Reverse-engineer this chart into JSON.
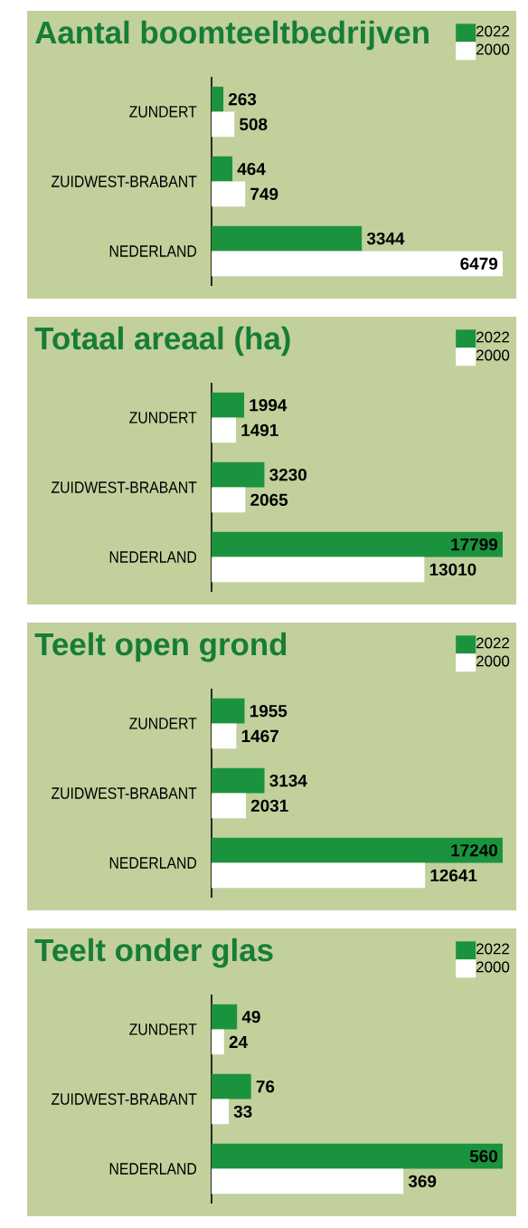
{
  "chart_data": [
    {
      "type": "bar",
      "orientation": "horizontal",
      "title": "Aantal boomteeltbedrijven",
      "categories": [
        "ZUNDERT",
        "ZUIDWEST-BRABANT",
        "NEDERLAND"
      ],
      "series": [
        {
          "name": "2022",
          "color": "#1b933e",
          "values": [
            263,
            464,
            3344
          ]
        },
        {
          "name": "2000",
          "color": "#ffffff",
          "values": [
            508,
            749,
            6479
          ]
        }
      ],
      "data_labels": true,
      "legend": "top right",
      "tick_labels": "y"
    },
    {
      "type": "bar",
      "orientation": "horizontal",
      "title": "Totaal areaal (ha)",
      "categories": [
        "ZUNDERT",
        "ZUIDWEST-BRABANT",
        "NEDERLAND"
      ],
      "series": [
        {
          "name": "2022",
          "color": "#1b933e",
          "values": [
            1994,
            3230,
            17799
          ]
        },
        {
          "name": "2000",
          "color": "#ffffff",
          "values": [
            1491,
            2065,
            13010
          ]
        }
      ],
      "data_labels": true,
      "legend": "top right",
      "tick_labels": "y"
    },
    {
      "type": "bar",
      "orientation": "horizontal",
      "title": "Teelt open grond",
      "categories": [
        "ZUNDERT",
        "ZUIDWEST-BRABANT",
        "NEDERLAND"
      ],
      "series": [
        {
          "name": "2022",
          "color": "#1b933e",
          "values": [
            1955,
            3134,
            17240
          ]
        },
        {
          "name": "2000",
          "color": "#ffffff",
          "values": [
            1467,
            2031,
            12641
          ]
        }
      ],
      "data_labels": true,
      "legend": "top right",
      "tick_labels": "y"
    },
    {
      "type": "bar",
      "orientation": "horizontal",
      "title": "Teelt onder glas",
      "categories": [
        "ZUNDERT",
        "ZUIDWEST-BRABANT",
        "NEDERLAND"
      ],
      "series": [
        {
          "name": "2022",
          "color": "#1b933e",
          "values": [
            49,
            76,
            560
          ]
        },
        {
          "name": "2000",
          "color": "#ffffff",
          "values": [
            24,
            33,
            369
          ]
        }
      ],
      "data_labels": true,
      "legend": "top right",
      "tick_labels": "y"
    }
  ]
}
